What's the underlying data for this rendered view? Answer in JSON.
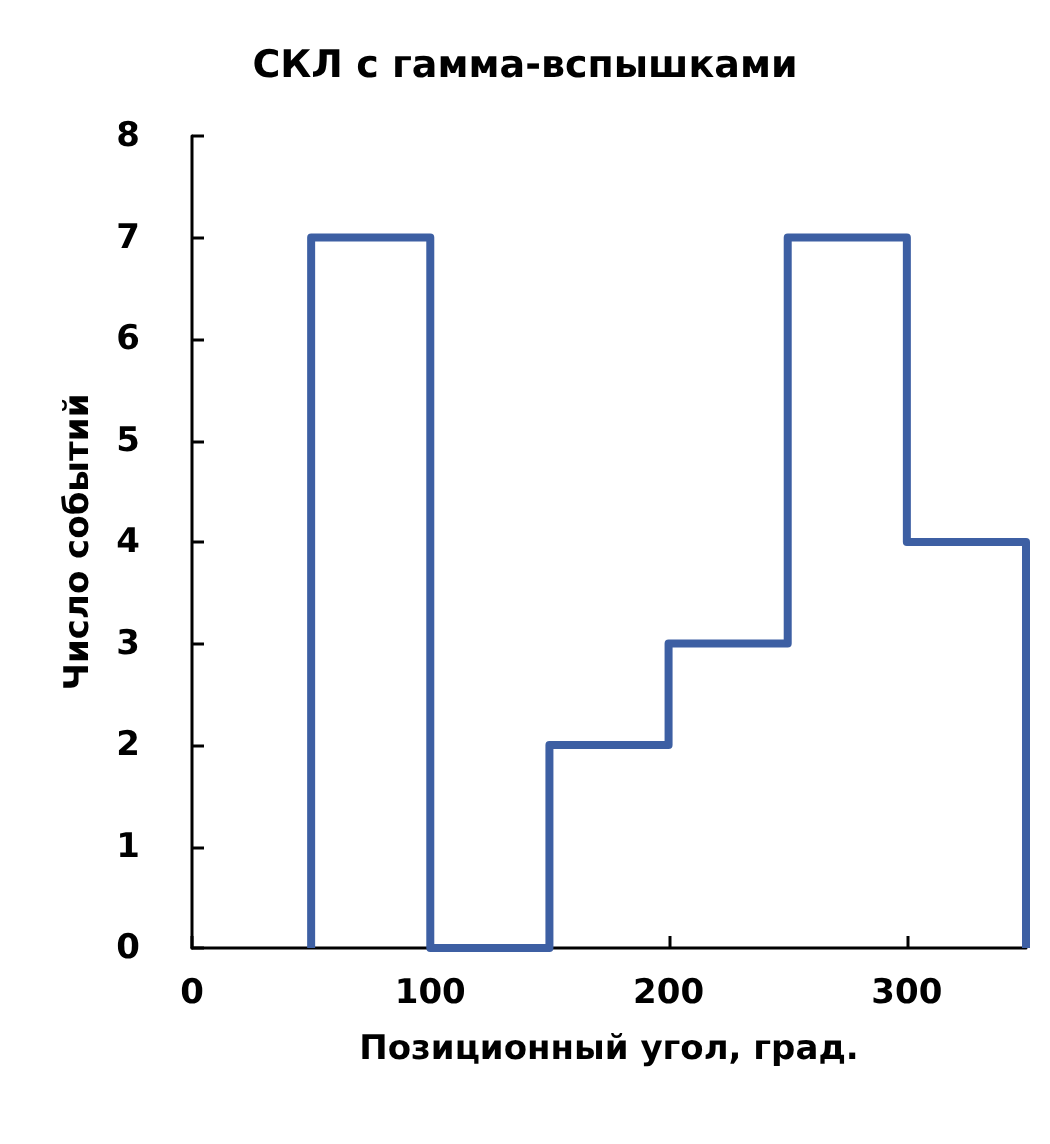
{
  "chart_data": {
    "type": "histogram",
    "title": "СКЛ с гамма-вспышками",
    "xlabel": "Позиционный угол, град.",
    "ylabel": "Число событий",
    "bins": [
      50,
      100,
      150,
      200,
      250,
      300,
      350
    ],
    "values": [
      7,
      0,
      2,
      3,
      7,
      4
    ],
    "color": "#3d5fa3",
    "xlim": [
      0,
      350
    ],
    "xticks": [
      0,
      100,
      200,
      300
    ],
    "ylim": [
      0,
      8
    ],
    "yticks": [
      0,
      1,
      2,
      3,
      4,
      5,
      6,
      7,
      8
    ],
    "grid": false
  }
}
